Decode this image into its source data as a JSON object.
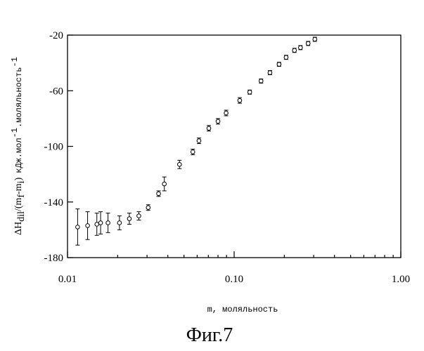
{
  "figure_caption": "Фиг.7",
  "chart_data": {
    "type": "scatter",
    "xlabel": "m, моляльность",
    "ylabel_math": "ΔH",
    "ylabel_sub": "dil",
    "ylabel_mid": "/(m",
    "ylabel_sub2": "f",
    "ylabel_mid2": "-m",
    "ylabel_sub3": "i",
    "ylabel_close": ")",
    "ylabel_units": "кДж.мол",
    "ylabel_units_sup": "-1",
    "ylabel_units2": ".моляльность",
    "ylabel_units2_sup": "-1",
    "x_scale": "log",
    "xlim": [
      0.01,
      1.0
    ],
    "ylim": [
      -180,
      -20
    ],
    "x_ticks": [
      {
        "value": 0.01,
        "label": "0.01"
      },
      {
        "value": 0.1,
        "label": "0.10"
      },
      {
        "value": 1.0,
        "label": "1.00"
      }
    ],
    "y_ticks": [
      {
        "value": -20,
        "label": "-20"
      },
      {
        "value": -60,
        "label": "-60"
      },
      {
        "value": -100,
        "label": "-100"
      },
      {
        "value": -140,
        "label": "-140"
      },
      {
        "value": -180,
        "label": "-180"
      }
    ],
    "grid": false,
    "points": [
      {
        "x": 0.0115,
        "y": -158,
        "err": 13
      },
      {
        "x": 0.0132,
        "y": -157,
        "err": 10
      },
      {
        "x": 0.015,
        "y": -156,
        "err": 8
      },
      {
        "x": 0.0158,
        "y": -155,
        "err": 8
      },
      {
        "x": 0.0175,
        "y": -155,
        "err": 7
      },
      {
        "x": 0.0205,
        "y": -155,
        "err": 5
      },
      {
        "x": 0.0235,
        "y": -152,
        "err": 4
      },
      {
        "x": 0.0268,
        "y": -150,
        "err": 3
      },
      {
        "x": 0.0305,
        "y": -144,
        "err": 2
      },
      {
        "x": 0.0352,
        "y": -134,
        "err": 2
      },
      {
        "x": 0.0381,
        "y": -127,
        "err": 5
      },
      {
        "x": 0.047,
        "y": -113,
        "err": 3
      },
      {
        "x": 0.0565,
        "y": -104,
        "err": 2
      },
      {
        "x": 0.0615,
        "y": -96,
        "err": 2
      },
      {
        "x": 0.0705,
        "y": -87,
        "err": 2
      },
      {
        "x": 0.08,
        "y": -82,
        "err": 2
      },
      {
        "x": 0.0895,
        "y": -76,
        "err": 2
      },
      {
        "x": 0.108,
        "y": -67,
        "err": 2
      },
      {
        "x": 0.124,
        "y": -61,
        "err": 1.5
      },
      {
        "x": 0.145,
        "y": -53,
        "err": 1.5
      },
      {
        "x": 0.164,
        "y": -47,
        "err": 1.5
      },
      {
        "x": 0.186,
        "y": -41,
        "err": 1.5
      },
      {
        "x": 0.205,
        "y": -36,
        "err": 1.5
      },
      {
        "x": 0.23,
        "y": -31,
        "err": 1.5
      },
      {
        "x": 0.25,
        "y": -29,
        "err": 1.5
      },
      {
        "x": 0.278,
        "y": -26,
        "err": 1.5
      },
      {
        "x": 0.305,
        "y": -23,
        "err": 1.5
      }
    ]
  }
}
